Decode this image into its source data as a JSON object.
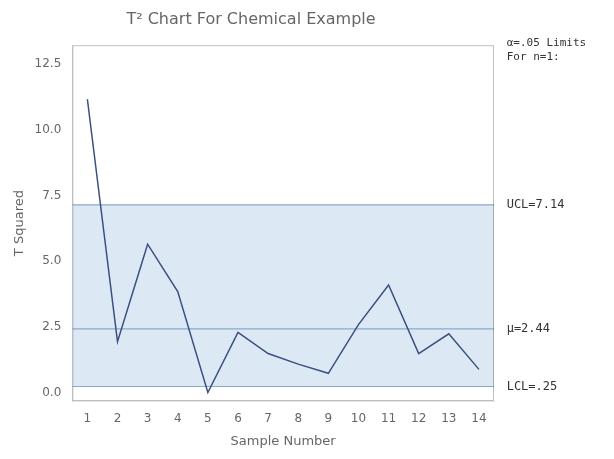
{
  "chart_data": {
    "type": "line",
    "title": "T² Chart For Chemical Example",
    "xlabel": "Sample Number",
    "ylabel": "T Squared",
    "x": [
      1,
      2,
      3,
      4,
      5,
      6,
      7,
      8,
      9,
      10,
      11,
      12,
      13,
      14
    ],
    "values": [
      11.15,
      1.95,
      5.65,
      3.85,
      0.02,
      2.3,
      1.5,
      1.1,
      0.75,
      2.6,
      4.1,
      1.5,
      2.25,
      0.9
    ],
    "color": "#3a5080",
    "xlim": [
      0.5,
      14.5
    ],
    "xticks": [
      1,
      2,
      3,
      4,
      5,
      6,
      7,
      8,
      9,
      10,
      11,
      12,
      13,
      14
    ],
    "ylim": [
      -0.3,
      13.2
    ],
    "yticks": [
      {
        "value": 0,
        "label": "0.0"
      },
      2.5,
      {
        "value": 5,
        "label": "5.0"
      },
      7.5,
      {
        "value": 10,
        "label": "10.0"
      },
      12.5
    ],
    "grid": false,
    "control_lines": [
      {
        "value": 7.14,
        "label": "UCL=7.14",
        "color": "#8aaac8"
      },
      {
        "value": 2.44,
        "label": "μ=2.44",
        "color": "#8aaac8"
      },
      {
        "value": 0.25,
        "label": "LCL=.25",
        "color": "#8aaac8"
      }
    ],
    "band": {
      "from": 0.25,
      "to": 7.14,
      "color": "#dce9f5"
    },
    "annotation": "α=.05 Limits\nFor n=1:"
  }
}
